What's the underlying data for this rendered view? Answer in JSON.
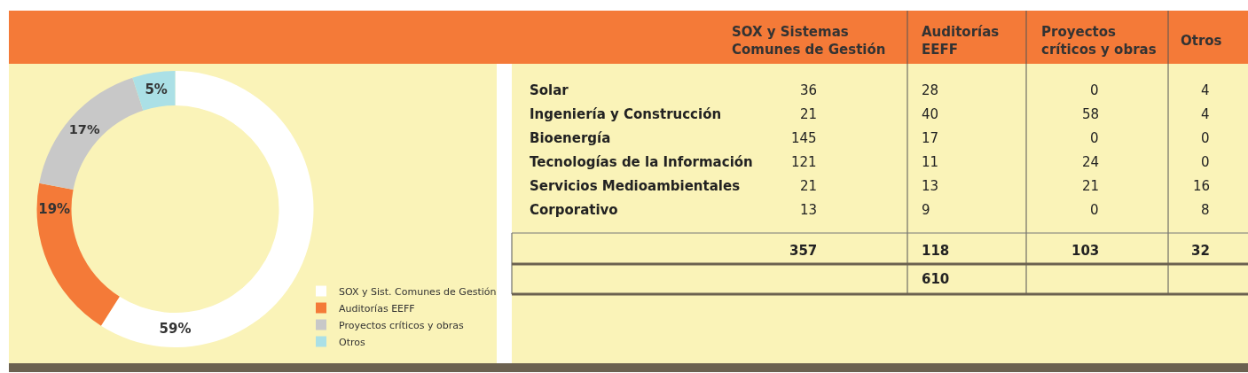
{
  "chart_data": [
    {
      "type": "donut",
      "categories": [
        "SOX y Sist. Comunes de Gestión",
        "Auditorías EEFF",
        "Proyectos críticos y obras",
        "Otros"
      ],
      "values": [
        59,
        19,
        17,
        5
      ],
      "colors": [
        "#ffffff",
        "#f47a38",
        "#c8c8c8",
        "#abe0e6"
      ],
      "value_labels": [
        "59%",
        "19%",
        "17%",
        "5%"
      ],
      "legend": "bottom right"
    },
    {
      "type": "other",
      "categories": [
        "Solar",
        "Ingeniería y Construcción",
        "Bioenergía",
        "Tecnologías de la Información",
        "Servicios Medioambientales",
        "Corporativo"
      ],
      "series": [
        {
          "name": "SOX y Sistemas Comunes de Gestión",
          "values": [
            36,
            21,
            145,
            121,
            21,
            13
          ]
        },
        {
          "name": "Auditorías EEFF",
          "values": [
            28,
            40,
            17,
            11,
            13,
            9
          ]
        },
        {
          "name": "Proyectos críticos y obras",
          "values": [
            0,
            58,
            0,
            24,
            21,
            0
          ]
        },
        {
          "name": "Otros",
          "values": [
            4,
            4,
            0,
            0,
            16,
            8
          ]
        }
      ],
      "data_labels": true,
      "totals": [
        "357",
        "118",
        "103",
        "32"
      ],
      "annotations": [
        "610"
      ]
    }
  ]
}
